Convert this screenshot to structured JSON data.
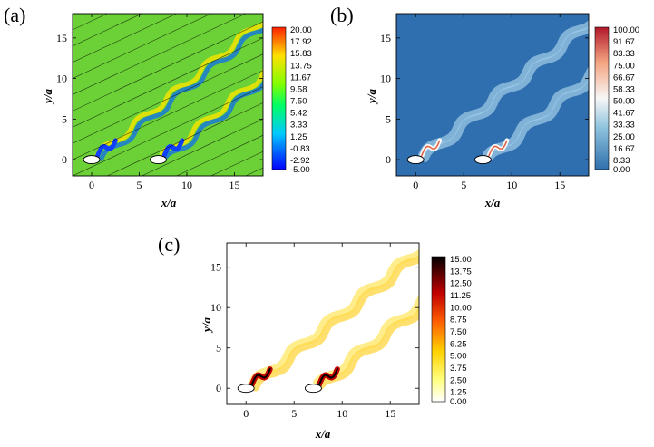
{
  "chart_data": [
    {
      "panel": "(a)",
      "type": "heatmap",
      "xlabel": "x/a",
      "ylabel": "y/a",
      "xlim": [
        -2,
        18
      ],
      "ylim": [
        -2,
        18
      ],
      "xticks": [
        "0",
        "5",
        "10",
        "15"
      ],
      "yticks": [
        "0",
        "5",
        "10",
        "15"
      ],
      "colorbar_labels": [
        "20.00",
        "17.92",
        "15.83",
        "13.75",
        "11.67",
        "9.58",
        "7.50",
        "5.42",
        "3.33",
        "1.25",
        "-0.83",
        "-2.92",
        "-5.00"
      ],
      "colormap": [
        "#0000ff",
        "#00c8ff",
        "#00ff66",
        "#80ff00",
        "#ffe000",
        "#ff2000"
      ],
      "background_color": "#6bd136",
      "streamlines": true,
      "bodies": [
        {
          "x": 0,
          "y": 0
        },
        {
          "x": 7,
          "y": 0
        }
      ]
    },
    {
      "panel": "(b)",
      "type": "heatmap",
      "xlabel": "x/a",
      "ylabel": "y/a",
      "xlim": [
        -2,
        18
      ],
      "ylim": [
        -2,
        18
      ],
      "xticks": [
        "0",
        "5",
        "10",
        "15"
      ],
      "yticks": [
        "0",
        "5",
        "10",
        "15"
      ],
      "colorbar_labels": [
        "100.00",
        "91.67",
        "83.33",
        "75.00",
        "66.67",
        "58.33",
        "50.00",
        "41.67",
        "33.33",
        "25.00",
        "16.67",
        "8.33",
        "0.00"
      ],
      "colormap": [
        "#2e6fad",
        "#92c5de",
        "#f7f7f7",
        "#f4a582",
        "#b2182b"
      ],
      "background_color": "#2f6faf",
      "bodies": [
        {
          "x": 0,
          "y": 0
        },
        {
          "x": 7,
          "y": 0
        }
      ]
    },
    {
      "panel": "(c)",
      "type": "heatmap",
      "xlabel": "x/a",
      "ylabel": "y/a",
      "xlim": [
        -2,
        18
      ],
      "ylim": [
        -2,
        18
      ],
      "xticks": [
        "0",
        "5",
        "10",
        "15"
      ],
      "yticks": [
        "0",
        "5",
        "10",
        "15"
      ],
      "colorbar_labels": [
        "15.00",
        "13.75",
        "12.50",
        "11.25",
        "10.00",
        "8.75",
        "7.50",
        "6.25",
        "5.00",
        "3.75",
        "2.50",
        "1.25",
        "0.00"
      ],
      "colormap": [
        "#ffffff",
        "#ffff80",
        "#ffd000",
        "#ff6000",
        "#c00000",
        "#000000"
      ],
      "background_color": "#ffffff",
      "bodies": [
        {
          "x": 0,
          "y": 0
        },
        {
          "x": 7,
          "y": 0
        }
      ]
    }
  ]
}
